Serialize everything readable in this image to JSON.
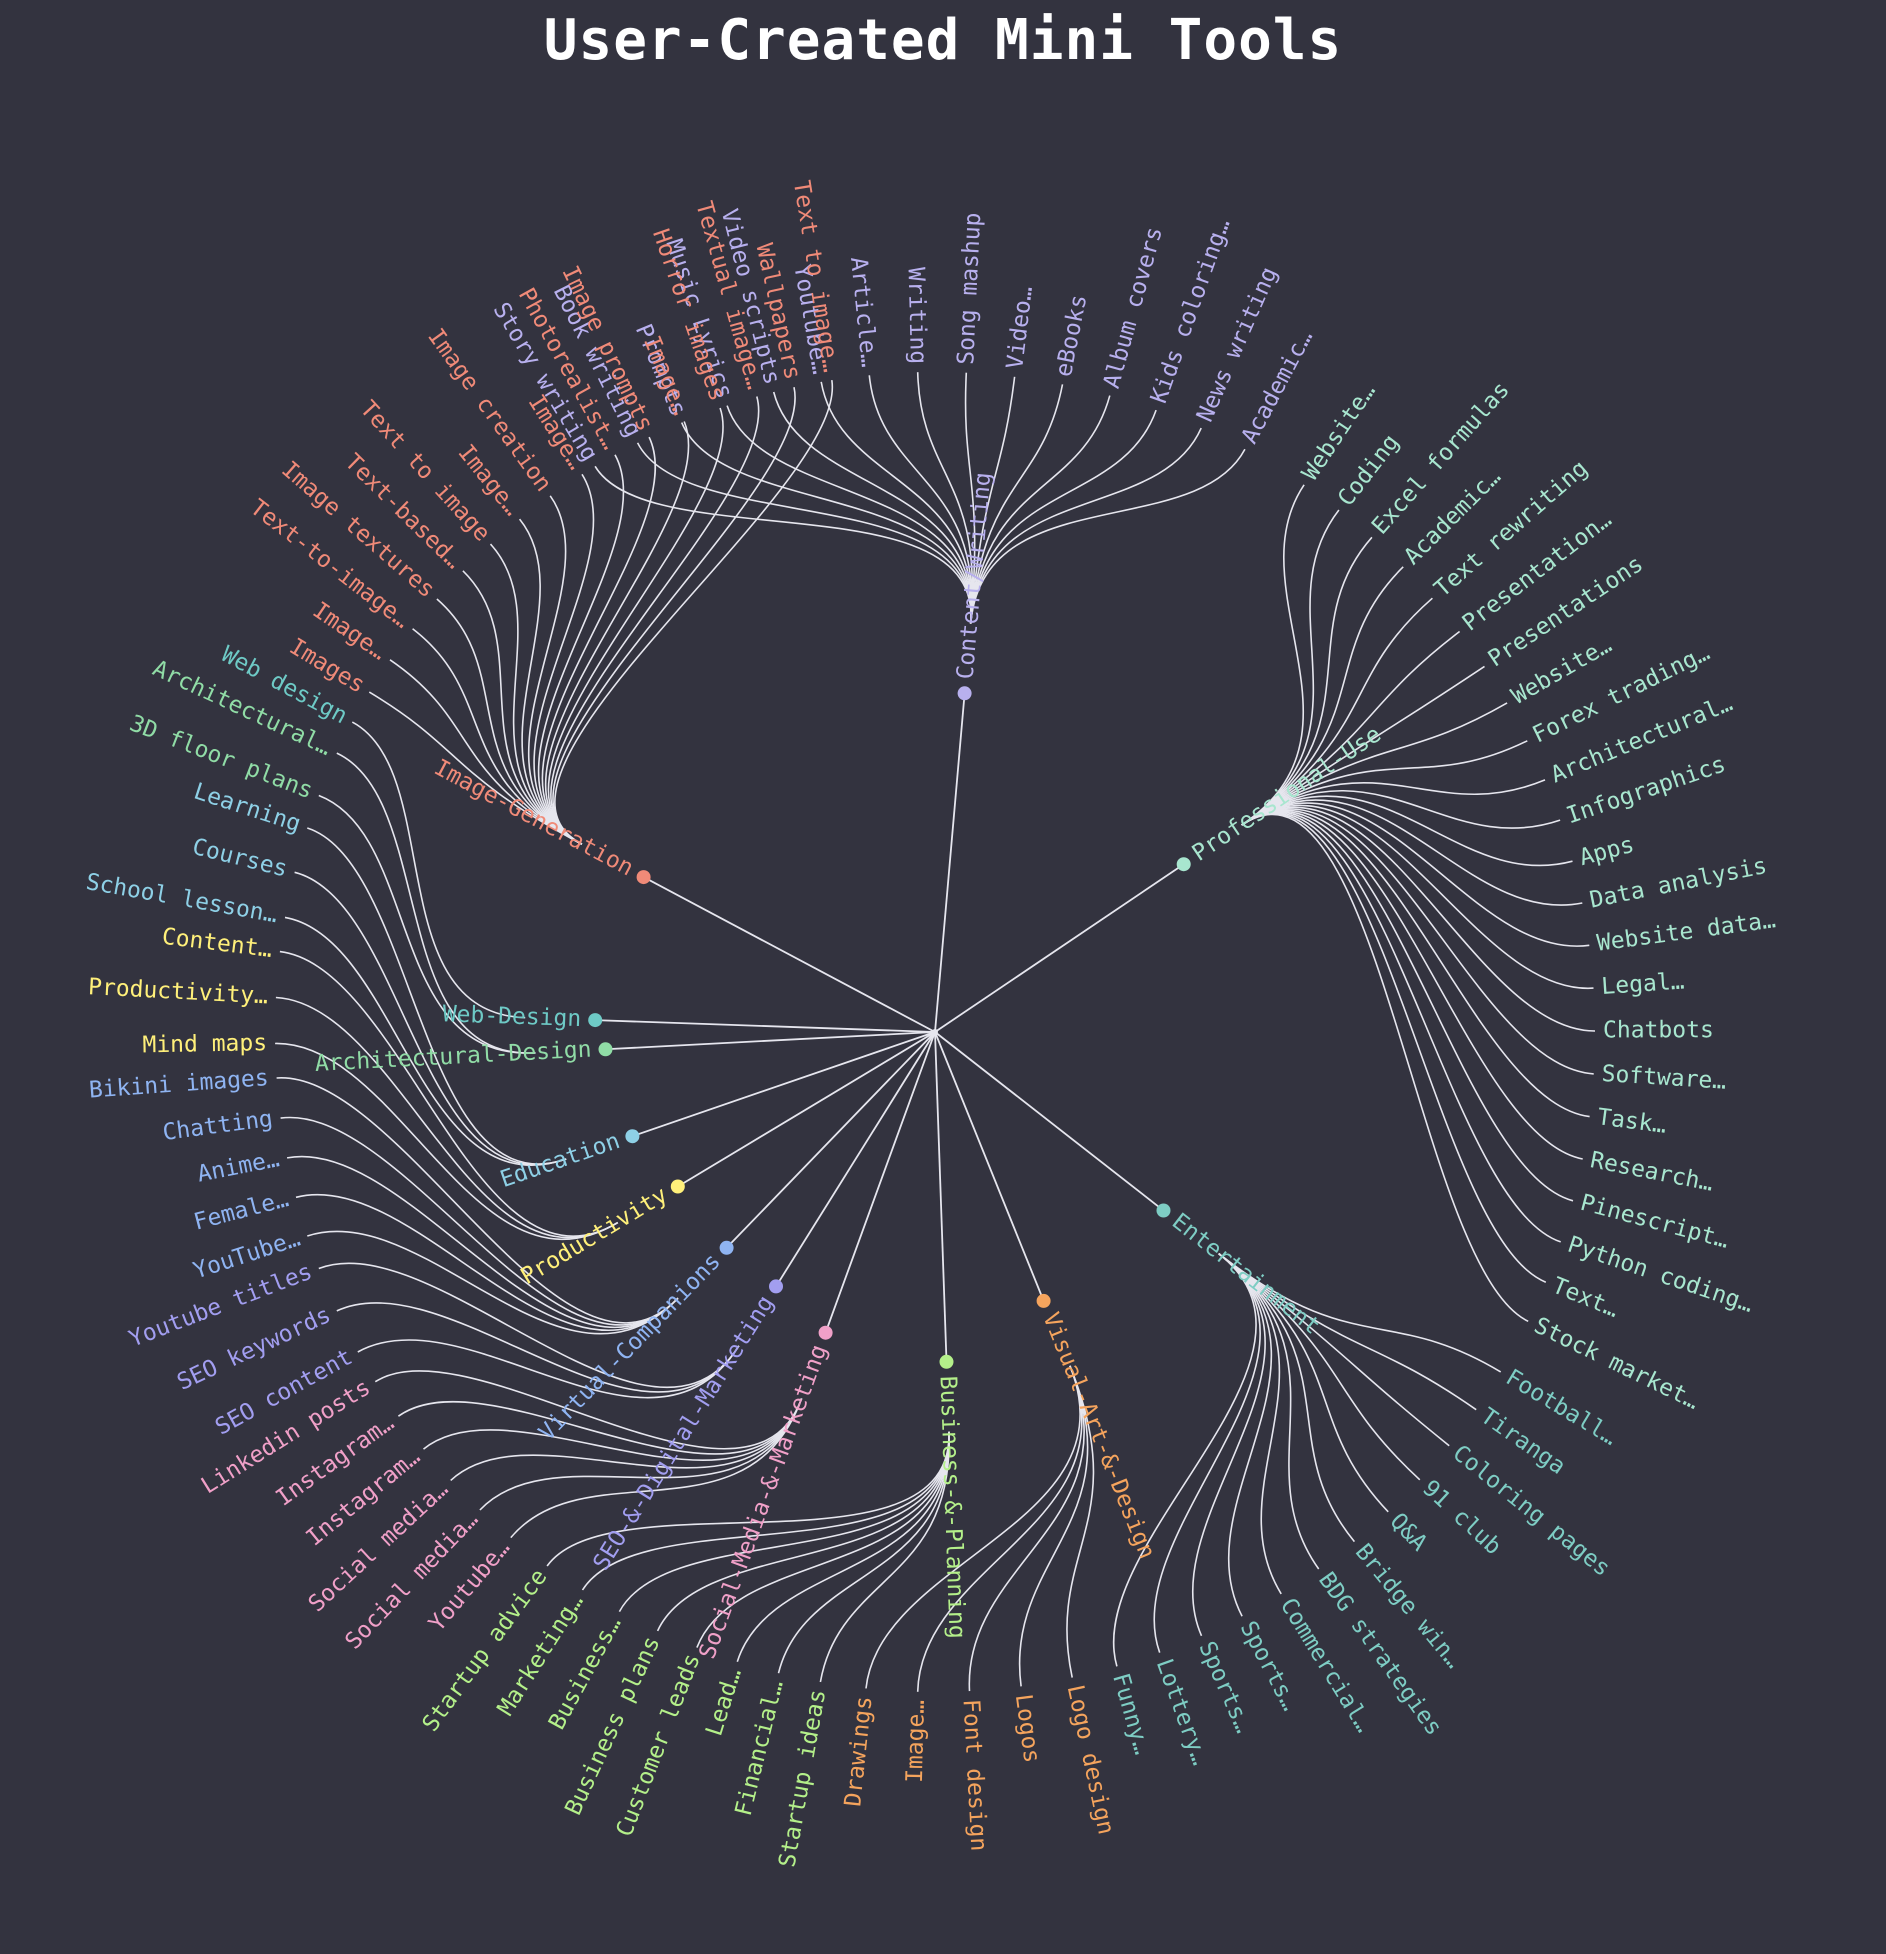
{
  "title": "User-Created Mini Tools",
  "colors": {
    "background": "#33333f",
    "link": "#e6e6ee",
    "content_writing": "#b8b0ee",
    "professional_use": "#a8e6cf",
    "entertainment": "#7ecdc4",
    "visual_art_design": "#f5a45d",
    "business_planning": "#b4f08a",
    "social_media_marketing": "#f0a0c8",
    "seo_digital_marketing": "#a29ef0",
    "virtual_companions": "#8fb4f2",
    "productivity": "#fff07a",
    "education": "#8ed0e6",
    "architectural_design": "#90dca6",
    "web_design": "#6ecac6",
    "image_generation": "#f08a78"
  },
  "root": "",
  "categories": [
    {
      "name": "Content/Writing",
      "color_key": "content_writing",
      "leaves": [
        "Story writing",
        "Book writing",
        "Prompts",
        "Music Lyrics",
        "Video scripts",
        "Youtube…",
        "Article…",
        "Writing",
        "Song mashup",
        "Video…",
        "eBooks",
        "Album covers",
        "Kids coloring…",
        "News writing",
        "Academic…"
      ]
    },
    {
      "name": "Professional-Use",
      "color_key": "professional_use",
      "leaves": [
        "Website…",
        "Coding",
        "Excel formulas",
        "Academic…",
        "Text rewriting",
        "Presentation…",
        "Presentations",
        "Website…",
        "Forex trading…",
        "Architectural…",
        "Infographics",
        "Apps",
        "Data analysis",
        "Website data…",
        "Legal…",
        "Chatbots",
        "Software…",
        "Task…",
        "Research…",
        "Pinescript…",
        "Python coding…",
        "Text…",
        "Stock market…"
      ]
    },
    {
      "name": "Entertainment",
      "color_key": "entertainment",
      "leaves": [
        "Football…",
        "Tiranga",
        "Coloring pages",
        "91 club",
        "Q&A",
        "Bridge win…",
        "BDG strategies",
        "Commercial…",
        "Sports…",
        "Sports…",
        "Lottery…",
        "Funny…"
      ]
    },
    {
      "name": "Visual-Art-&-Design",
      "color_key": "visual_art_design",
      "leaves": [
        "Logo design",
        "Logos",
        "Font design",
        "Image…",
        "Drawings"
      ]
    },
    {
      "name": "Business-&-Planning",
      "color_key": "business_planning",
      "leaves": [
        "Startup ideas",
        "Financial…",
        "Lead…",
        "Customer leads",
        "Business plans",
        "Business…",
        "Marketing…",
        "Startup advice"
      ]
    },
    {
      "name": "Social-Media-&-Marketing",
      "color_key": "social_media_marketing",
      "leaves": [
        "Youtube…",
        "Social media…",
        "Social media…",
        "Instagram…",
        "Instagram…",
        "Linkedin posts"
      ]
    },
    {
      "name": "SEO-&-Digital-Marketing",
      "color_key": "seo_digital_marketing",
      "leaves": [
        "SEO content",
        "SEO keywords",
        "Youtube titles"
      ]
    },
    {
      "name": "Virtual-Companions",
      "color_key": "virtual_companions",
      "leaves": [
        "YouTube…",
        "Female…",
        "Anime…",
        "Chatting",
        "Bikini images"
      ]
    },
    {
      "name": "Productivity",
      "color_key": "productivity",
      "leaves": [
        "Mind maps",
        "Productivity…",
        "Content…"
      ]
    },
    {
      "name": "Education",
      "color_key": "education",
      "leaves": [
        "School lesson…",
        "Courses",
        "Learning"
      ]
    },
    {
      "name": "Architectural-Design",
      "color_key": "architectural_design",
      "leaves": [
        "3D floor plans",
        "Architectural…"
      ]
    },
    {
      "name": "Web-Design",
      "color_key": "web_design",
      "leaves": [
        "Web design"
      ]
    },
    {
      "name": "Image-Generation",
      "color_key": "image_generation",
      "leaves": [
        "Images",
        "Image…",
        "Text-to-image…",
        "Image textures",
        "Text-based…",
        "Text to image",
        "Image…",
        "Image creation",
        "Image…",
        "Photorealist…",
        "Image prompts",
        "Image…",
        "Horror images",
        "Textual image…",
        "Wallpapers",
        "Text to image…"
      ]
    }
  ]
}
